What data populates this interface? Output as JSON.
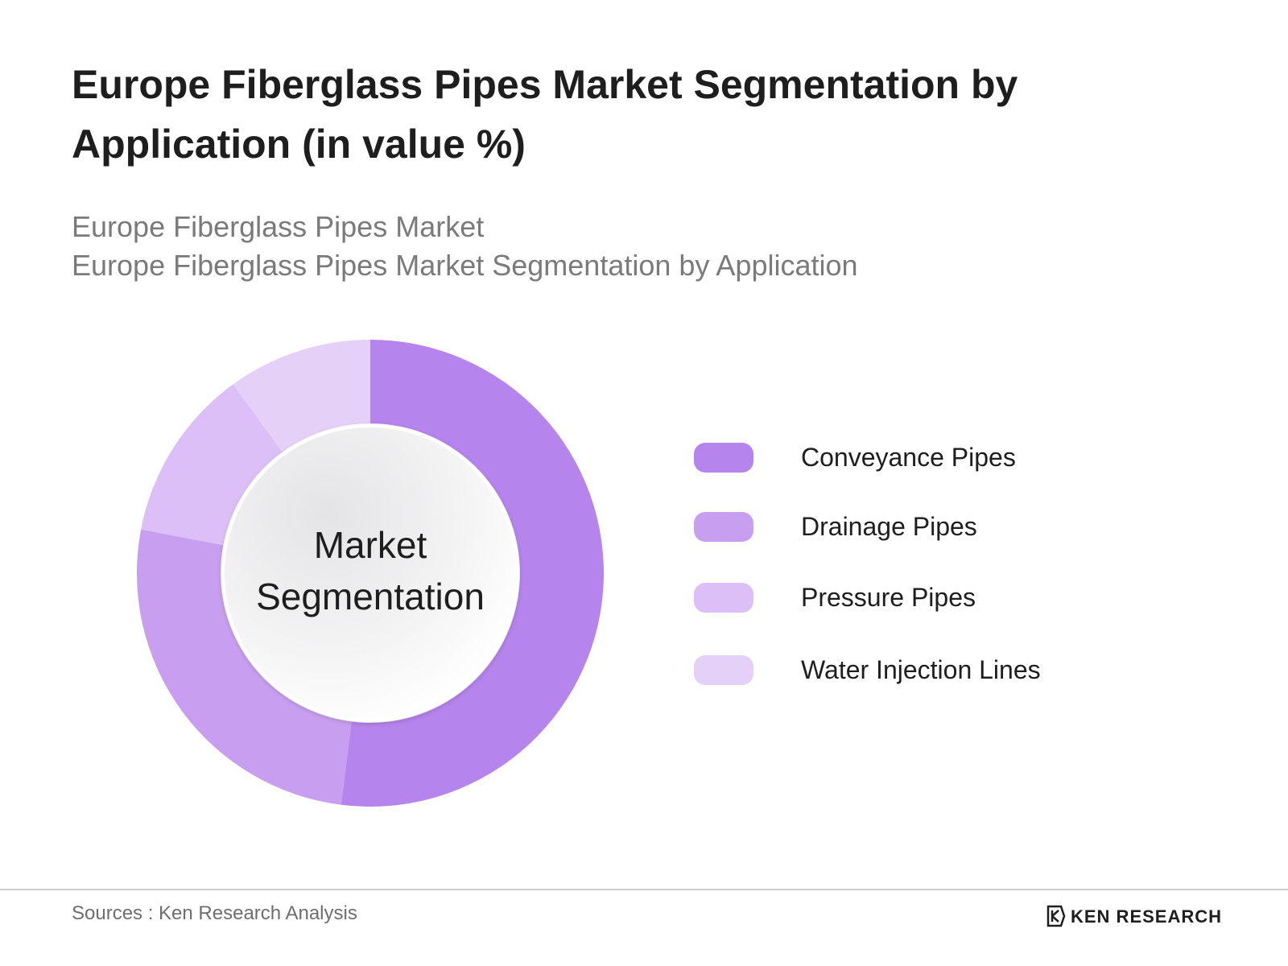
{
  "title": "Europe Fiberglass Pipes Market Segmentation by Application (in value %)",
  "subtitle_lines": [
    "Europe Fiberglass Pipes Market",
    "Europe Fiberglass Pipes Market Segmentation by Application"
  ],
  "center_label": [
    "Market",
    "Segmentation"
  ],
  "chart_data": {
    "type": "pie",
    "variant": "donut",
    "title": "Europe Fiberglass Pipes Market Segmentation by Application (in value %)",
    "categories": [
      "Conveyance Pipes",
      "Drainage Pipes",
      "Pressure Pipes",
      "Water Injection Lines"
    ],
    "values": [
      52,
      26,
      12,
      10
    ],
    "colors": [
      "#b584ec",
      "#c89ff0",
      "#dbbff6",
      "#e5d0f8"
    ],
    "legend_position": "right"
  },
  "footer": {
    "sources": "Sources : Ken Research Analysis",
    "logo_text": "KEN RESEARCH"
  }
}
